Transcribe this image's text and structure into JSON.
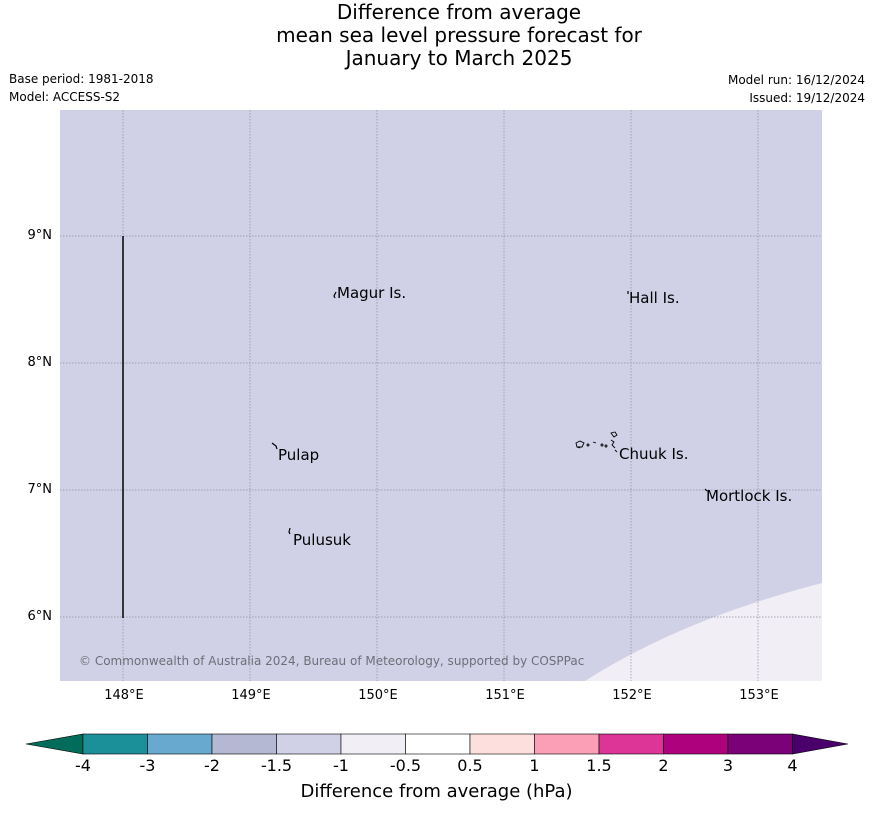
{
  "title_lines": [
    "Difference from average",
    "mean sea level pressure forecast for",
    "January to March 2025"
  ],
  "meta": {
    "base_period": "Base period: 1981-2018",
    "model": "Model: ACCESS-S2",
    "model_run": "Model run: 16/12/2024",
    "issued": "Issued: 19/12/2024"
  },
  "map": {
    "extent": {
      "lon_min": 147.5,
      "lon_max": 153.5,
      "lat_min": 5.5,
      "lat_max": 10.0
    },
    "fill_color": "#d0d1e6",
    "lat_labels": [
      {
        "lat": 9,
        "label": "9°N"
      },
      {
        "lat": 8,
        "label": "8°N"
      },
      {
        "lat": 7,
        "label": "7°N"
      },
      {
        "lat": 6,
        "label": "6°N"
      }
    ],
    "lon_labels": [
      {
        "lon": 148,
        "label": "148°E"
      },
      {
        "lon": 149,
        "label": "149°E"
      },
      {
        "lon": 150,
        "label": "150°E"
      },
      {
        "lon": 151,
        "label": "151°E"
      },
      {
        "lon": 152,
        "label": "152°E"
      },
      {
        "lon": 153,
        "label": "153°E"
      }
    ],
    "places": [
      {
        "name": "Magur Is.",
        "lon": 149.67,
        "lat": 8.53
      },
      {
        "name": "Hall Is.",
        "lon": 151.98,
        "lat": 8.49
      },
      {
        "name": "Pulap",
        "lon": 149.18,
        "lat": 7.29
      },
      {
        "name": "Chuuk Is.",
        "lon": 151.9,
        "lat": 7.3
      },
      {
        "name": "Mortlock Is.",
        "lon": 152.6,
        "lat": 6.96
      },
      {
        "name": "Pulusuk",
        "lon": 149.3,
        "lat": 6.62
      }
    ],
    "copyright": "© Commonwealth of Australia 2024, Bureau of Meteorology, supported by COSPPac"
  },
  "colorbar": {
    "title": "Difference from average (hPa)",
    "ticks": [
      "-4",
      "-3",
      "-2",
      "-1.5",
      "-1",
      "-0.5",
      "0.5",
      "1",
      "1.5",
      "2",
      "3",
      "4"
    ],
    "under_color": "#016c59",
    "over_color": "#49006a",
    "colors": [
      "#1c9099",
      "#67a9cf",
      "#b5b8d3",
      "#d0d1e6",
      "#f1eef6",
      "#ffffff",
      "#fde0dd",
      "#fa9fb5",
      "#dd3497",
      "#ae017e",
      "#7a0177"
    ]
  }
}
